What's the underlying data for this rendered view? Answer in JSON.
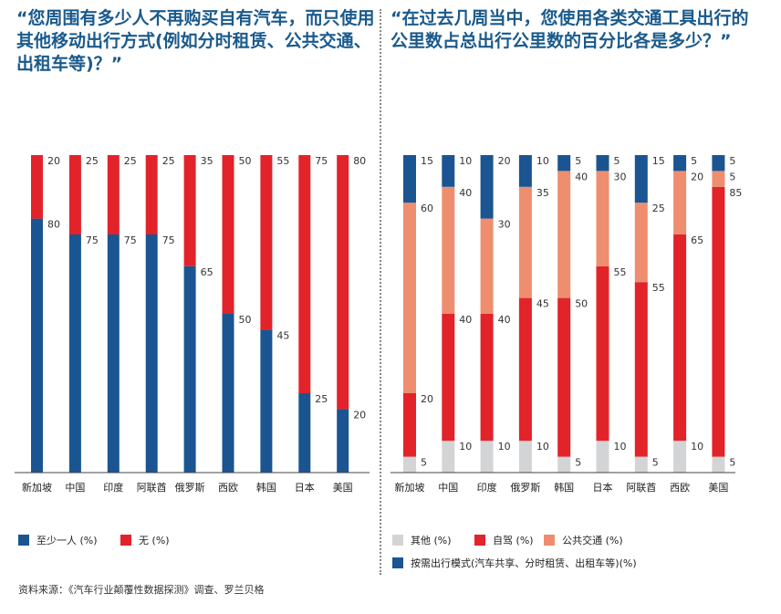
{
  "titles": {
    "left": "“您周围有多少人不再购买自有汽车，而只使用其他移动出行方式(例如分时租赁、公共交通、出租车等)？”",
    "right": "“在过去几周当中，您使用各类交通工具出行的公里数占总出行公里数的百分比各是多少？”"
  },
  "source": "资料来源：《汽车行业颠覆性数据探测》调查、罗兰贝格",
  "colors": {
    "blue": "#1a5592",
    "red": "#e2232a",
    "salmon": "#ee8e6e",
    "gray": "#d3d4d6"
  },
  "chart_data": [
    {
      "type": "bar",
      "stacked": true,
      "categories": [
        "新加坡",
        "中国",
        "印度",
        "阿联酋",
        "俄罗斯",
        "西欧",
        "韩国",
        "日本",
        "美国"
      ],
      "series": [
        {
          "name": "至少一人 (%)",
          "color": "#1a5592",
          "values": [
            80,
            75,
            75,
            75,
            65,
            50,
            45,
            25,
            20
          ]
        },
        {
          "name": "无 (%)",
          "color": "#e2232a",
          "values": [
            20,
            25,
            25,
            25,
            35,
            50,
            55,
            75,
            80
          ]
        }
      ],
      "ylim": [
        0,
        100
      ]
    },
    {
      "type": "bar",
      "stacked": true,
      "categories": [
        "新加坡",
        "中国",
        "印度",
        "俄罗斯",
        "韩国",
        "日本",
        "阿联酋",
        "西欧",
        "美国"
      ],
      "series": [
        {
          "name": "其他 (%)",
          "color": "#d3d4d6",
          "values": [
            5,
            10,
            10,
            10,
            5,
            10,
            5,
            10,
            5
          ]
        },
        {
          "name": "自驾 (%)",
          "color": "#e2232a",
          "values": [
            20,
            40,
            40,
            45,
            50,
            55,
            55,
            65,
            85
          ]
        },
        {
          "name": "公共交通 (%)",
          "color": "#ee8e6e",
          "values": [
            60,
            40,
            30,
            35,
            40,
            30,
            25,
            20,
            5
          ]
        },
        {
          "name": "按需出行模式(汽车共享、分时租赁、出租车等)(%)",
          "color": "#1a5592",
          "values": [
            15,
            10,
            20,
            10,
            5,
            5,
            15,
            5,
            5
          ]
        }
      ],
      "ylim": [
        0,
        100
      ]
    }
  ]
}
